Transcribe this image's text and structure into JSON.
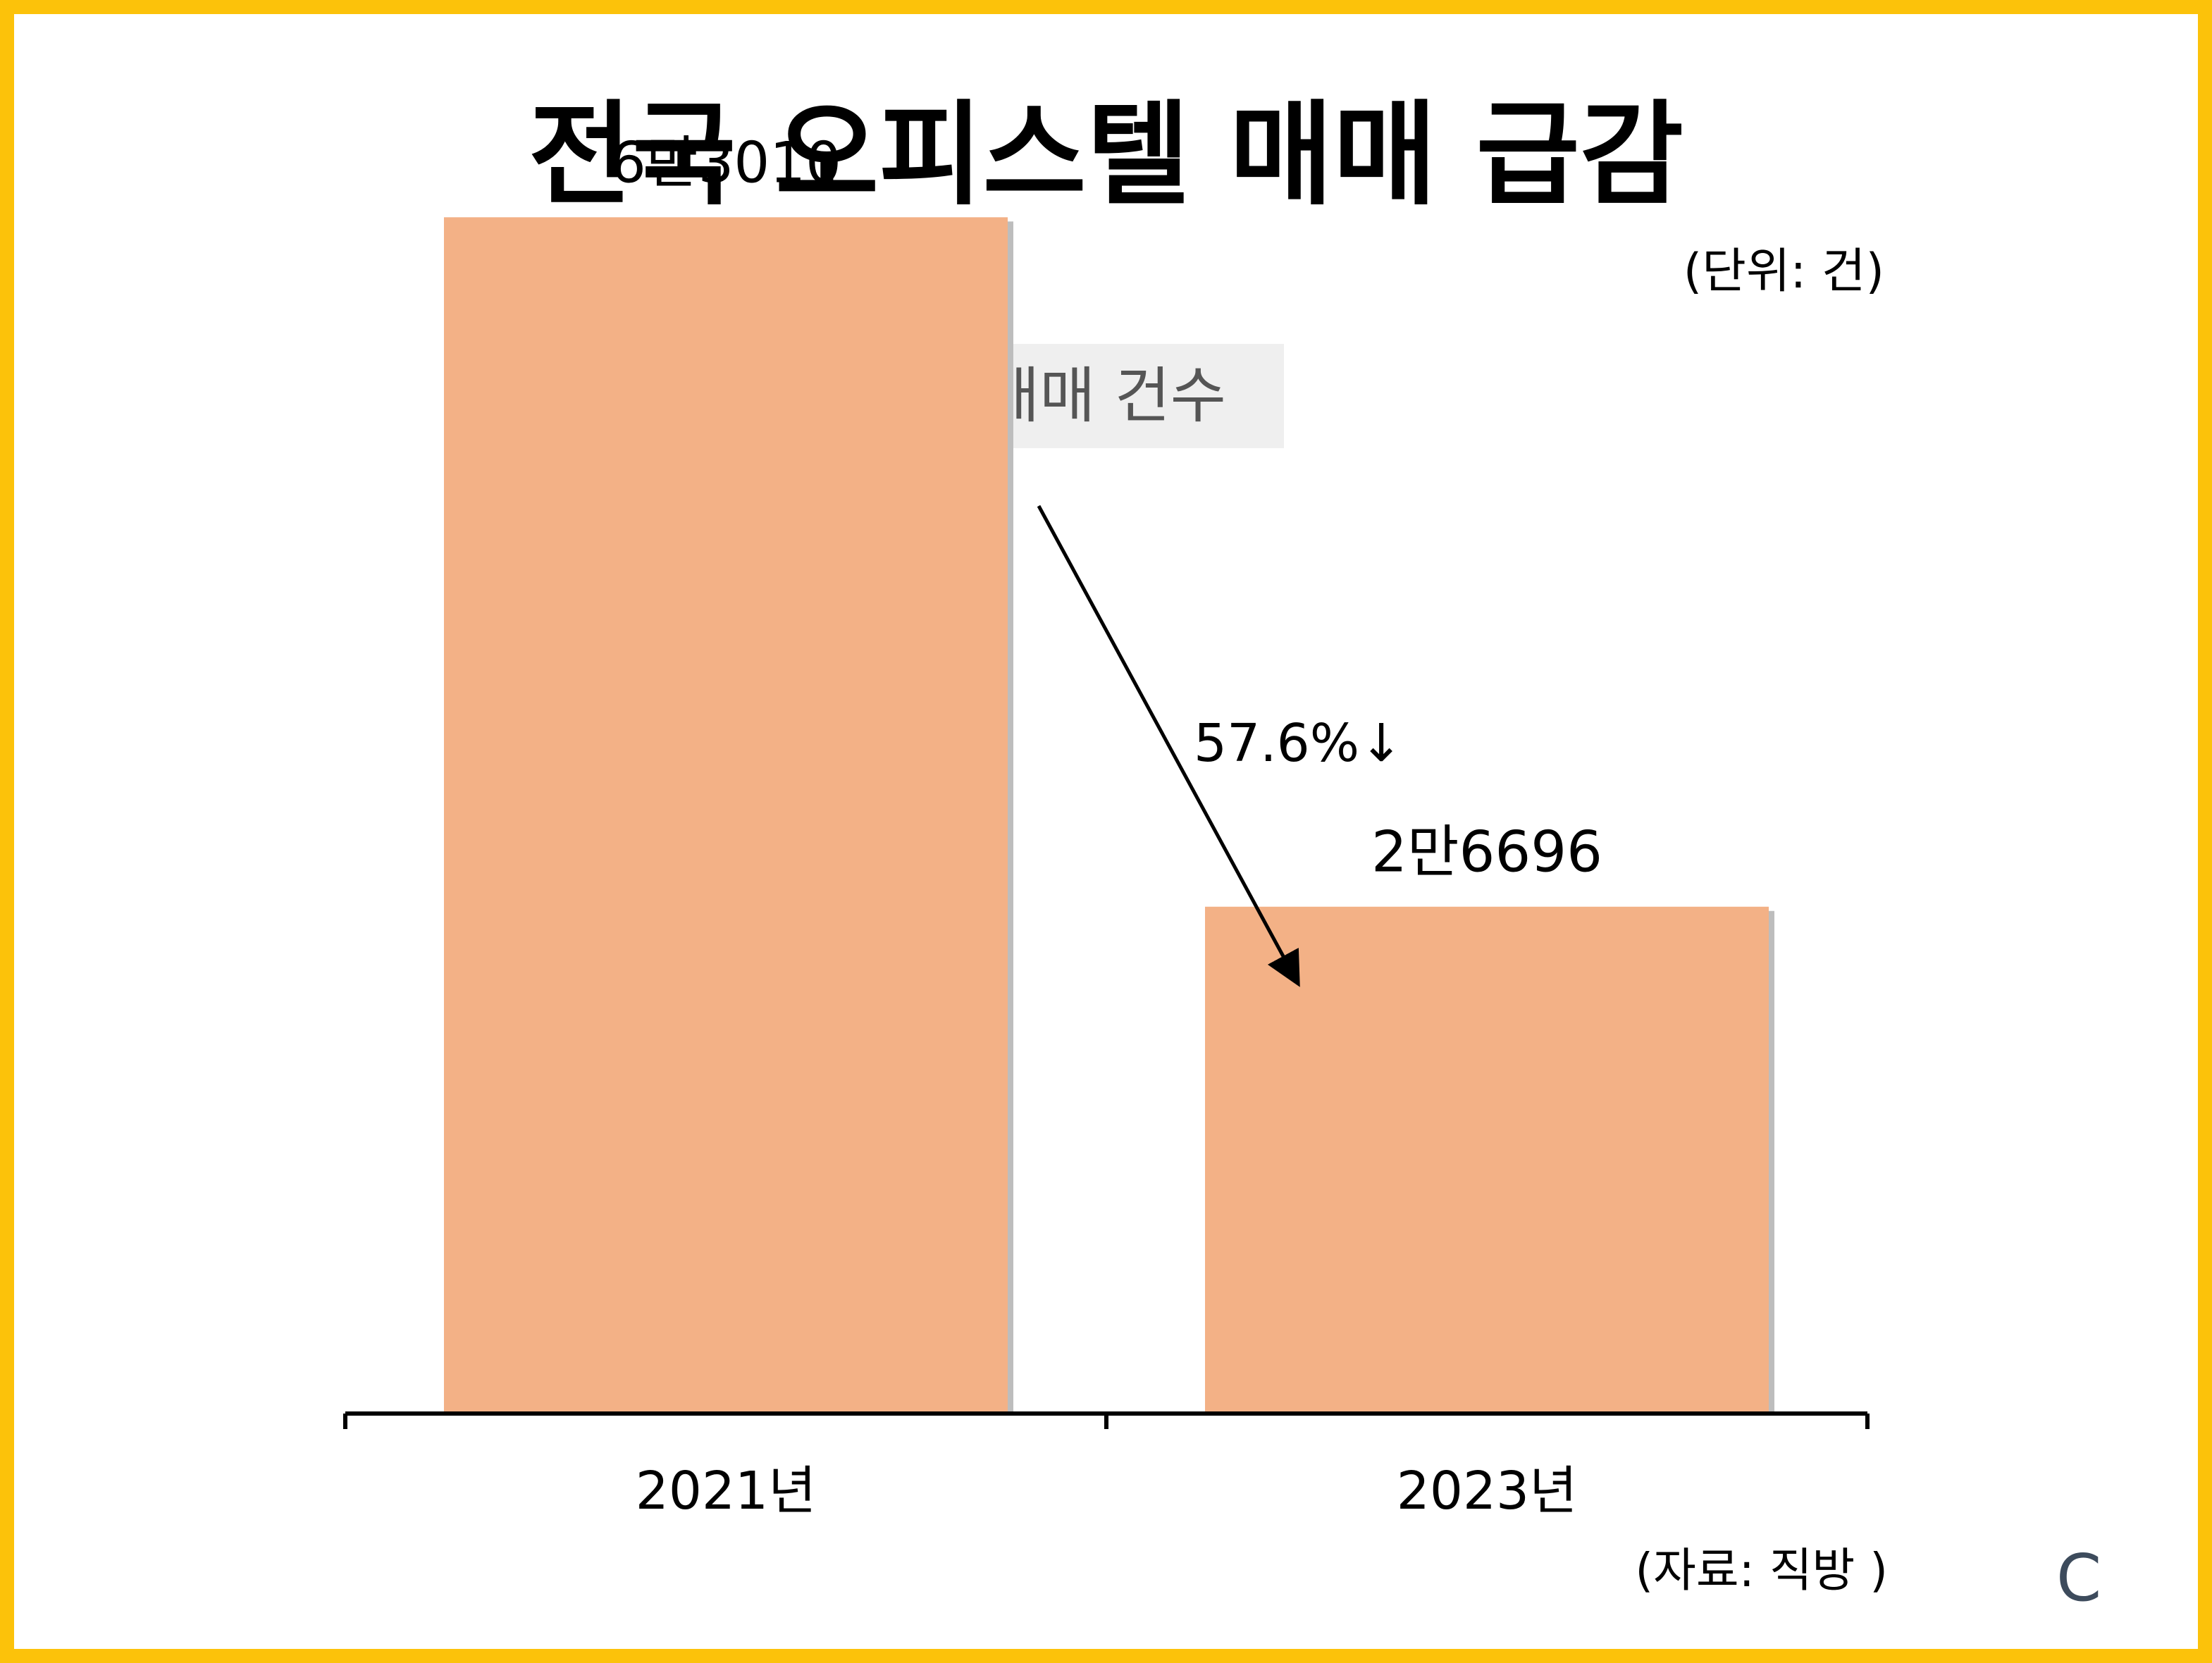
{
  "title": "전국 오피스텔 매매 급감",
  "unit_label": "(단위: 건)",
  "legend_label": "매매 건수",
  "source_label": "(자료: 직방 )",
  "corner_mark": "C",
  "colors": {
    "frame": "#fcc20a",
    "bar": "#f3b186",
    "bar_shadow": "#bdbdbd",
    "legend_bg": "#efefef",
    "legend_text": "#555555",
    "axis": "#000000"
  },
  "chart_data": {
    "type": "bar",
    "categories": [
      "2021년",
      "2023년"
    ],
    "values": [
      63010,
      26696
    ],
    "value_labels": [
      "6만3010",
      "2만6696"
    ],
    "annotation": "57.6%↓",
    "ylim": [
      0,
      70000
    ],
    "grid": false
  }
}
